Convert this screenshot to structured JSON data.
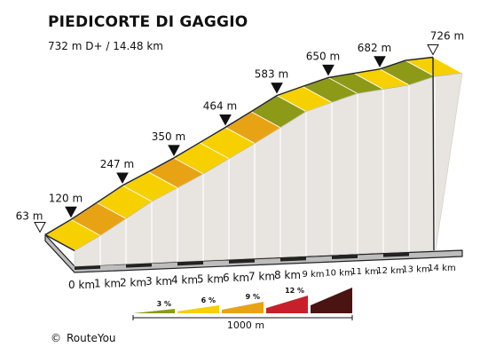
{
  "title": "PIEDICORTE DI GAGGIO",
  "subtitle": "732 m D+ / 14.48 km",
  "credit": {
    "symbol": "©",
    "text": "RouteYou"
  },
  "chart_data": {
    "type": "area",
    "title": "PIEDICORTE DI GAGGIO",
    "subtitle": "732 m D+ / 14.48 km",
    "xlabel": "",
    "ylabel": "",
    "x_ticks": [
      "0 km",
      "1 km",
      "2 km",
      "3 km",
      "4 km",
      "5 km",
      "6 km",
      "7 km",
      "8 km",
      "9 km",
      "10 km",
      "11 km",
      "12 km",
      "13 km",
      "14 km"
    ],
    "total_distance_km": 14.48,
    "elevation_profile": {
      "x_km": [
        0,
        1,
        2,
        3,
        4,
        5,
        6,
        7,
        8,
        9,
        10,
        11,
        12,
        13,
        14,
        14.48
      ],
      "elevation_m": [
        63,
        120,
        183,
        247,
        298,
        350,
        407,
        464,
        523,
        583,
        617,
        650,
        666,
        682,
        714,
        726
      ]
    },
    "segment_gradient_class": [
      1,
      2,
      1,
      1,
      2,
      1,
      1,
      2,
      0,
      1,
      0,
      0,
      1,
      0,
      1
    ],
    "waypoints": [
      {
        "km": 0,
        "label": "63 m",
        "kind": "endpoint"
      },
      {
        "km": 1,
        "label": "120 m",
        "kind": "marker"
      },
      {
        "km": 3,
        "label": "247 m",
        "kind": "marker"
      },
      {
        "km": 5,
        "label": "350 m",
        "kind": "marker"
      },
      {
        "km": 7,
        "label": "464 m",
        "kind": "marker"
      },
      {
        "km": 9,
        "label": "583 m",
        "kind": "marker"
      },
      {
        "km": 11,
        "label": "650 m",
        "kind": "marker"
      },
      {
        "km": 13,
        "label": "682 m",
        "kind": "marker"
      },
      {
        "km": 14.48,
        "label": "726 m",
        "kind": "endpoint"
      }
    ],
    "gradient_legend": [
      {
        "label": "3 %",
        "color": "#8c9a18"
      },
      {
        "label": "6 %",
        "color": "#f7d000"
      },
      {
        "label": "9 %",
        "color": "#e8a315"
      },
      {
        "label": "12 %",
        "color": "#c8202a"
      },
      {
        "label": "",
        "color": "#4a1412"
      }
    ],
    "scale_label": "1000 m",
    "colors": {
      "side": "#e8e4e0",
      "base": "#bdbdbd",
      "outline": "#222222"
    }
  }
}
